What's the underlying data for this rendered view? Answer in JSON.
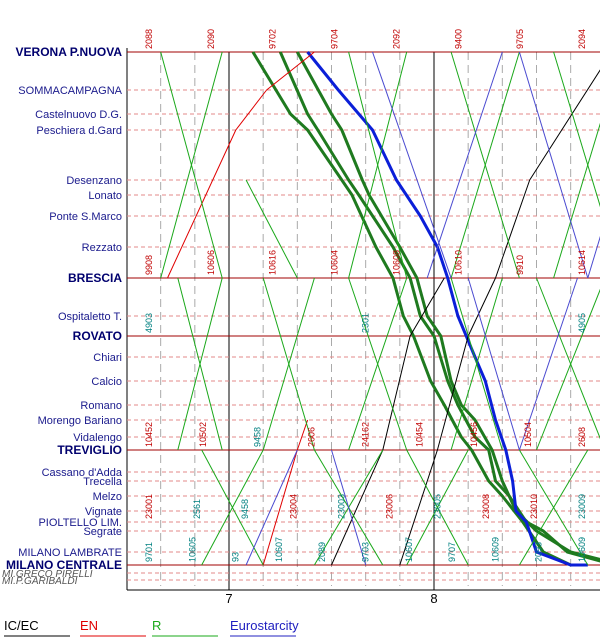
{
  "stations": [
    {
      "name": "VERONA P.NUOVA",
      "major": true
    },
    {
      "name": "SOMMACAMPAGNA",
      "major": false
    },
    {
      "name": "Castelnuovo D.G.",
      "major": false
    },
    {
      "name": "Peschiera d.Gard",
      "major": false
    },
    {
      "name": "Desenzano",
      "major": false
    },
    {
      "name": "Lonato",
      "major": false
    },
    {
      "name": "Ponte S.Marco",
      "major": false
    },
    {
      "name": "Rezzato",
      "major": false
    },
    {
      "name": "BRESCIA",
      "major": true
    },
    {
      "name": "Ospitaletto T.",
      "major": false
    },
    {
      "name": "ROVATO",
      "major": true
    },
    {
      "name": "Chiari",
      "major": false
    },
    {
      "name": "Calcio",
      "major": false
    },
    {
      "name": "Romano",
      "major": false
    },
    {
      "name": "Morengo Bariano",
      "major": false
    },
    {
      "name": "Vidalengo",
      "major": false
    },
    {
      "name": "TREVIGLIO",
      "major": true
    },
    {
      "name": "Cassano d'Adda",
      "major": false
    },
    {
      "name": "Trecella",
      "major": false
    },
    {
      "name": "Melzo",
      "major": false
    },
    {
      "name": "Vignate",
      "major": false
    },
    {
      "name": "PIOLTELLO LIM.",
      "major": false
    },
    {
      "name": "Segrate",
      "major": false
    },
    {
      "name": "MILANO LAMBRATE",
      "major": false
    },
    {
      "name": "MILANO CENTRALE",
      "major": true
    },
    {
      "name": "MI.GRECO PIRELLI",
      "major": false
    },
    {
      "name": "MI.P.GARIBALDI",
      "major": false
    }
  ],
  "hours": [
    "7",
    "8"
  ],
  "train_numbers": [
    {
      "label": "2088",
      "color": "#c00000",
      "station": "VERONA P.NUOVA"
    },
    {
      "label": "2090",
      "color": "#c00000",
      "station": "VERONA P.NUOVA"
    },
    {
      "label": "9702",
      "color": "#c00000",
      "station": "VERONA P.NUOVA"
    },
    {
      "label": "9704",
      "color": "#c00000",
      "station": "VERONA P.NUOVA"
    },
    {
      "label": "2092",
      "color": "#c00000",
      "station": "VERONA P.NUOVA"
    },
    {
      "label": "9400",
      "color": "#c00000",
      "station": "VERONA P.NUOVA"
    },
    {
      "label": "9705",
      "color": "#c00000",
      "station": "VERONA P.NUOVA"
    },
    {
      "label": "2094",
      "color": "#c00000",
      "station": "VERONA P.NUOVA"
    },
    {
      "label": "9908",
      "color": "#c00000",
      "station": "BRESCIA"
    },
    {
      "label": "10606",
      "color": "#c00000",
      "station": "BRESCIA"
    },
    {
      "label": "10616",
      "color": "#c00000",
      "station": "BRESCIA"
    },
    {
      "label": "10604",
      "color": "#c00000",
      "station": "BRESCIA"
    },
    {
      "label": "10608",
      "color": "#c00000",
      "station": "BRESCIA"
    },
    {
      "label": "10610",
      "color": "#c00000",
      "station": "BRESCIA"
    },
    {
      "label": "9910",
      "color": "#c00000",
      "station": "BRESCIA"
    },
    {
      "label": "10614",
      "color": "#c00000",
      "station": "BRESCIA"
    },
    {
      "label": "4903",
      "color": "#008080",
      "station": "ROVATO"
    },
    {
      "label": "2301",
      "color": "#008080",
      "station": "ROVATO"
    },
    {
      "label": "4905",
      "color": "#008080",
      "station": "ROVATO"
    },
    {
      "label": "10452",
      "color": "#c00000",
      "station": "TREVIGLIO"
    },
    {
      "label": "10502",
      "color": "#c00000",
      "station": "TREVIGLIO"
    },
    {
      "label": "9458",
      "color": "#008080",
      "station": "TREVIGLIO"
    },
    {
      "label": "2606",
      "color": "#c00000",
      "station": "TREVIGLIO"
    },
    {
      "label": "24162",
      "color": "#c00000",
      "station": "TREVIGLIO"
    },
    {
      "label": "10454",
      "color": "#c00000",
      "station": "TREVIGLIO"
    },
    {
      "label": "10456",
      "color": "#c00000",
      "station": "TREVIGLIO"
    },
    {
      "label": "10504",
      "color": "#c00000",
      "station": "TREVIGLIO"
    },
    {
      "label": "2608",
      "color": "#c00000",
      "station": "TREVIGLIO"
    },
    {
      "label": "23001",
      "color": "#c00000",
      "station": "PIOLTELLO LIM."
    },
    {
      "label": "2561",
      "color": "#008080",
      "station": "PIOLTELLO LIM."
    },
    {
      "label": "9458",
      "color": "#008080",
      "station": "PIOLTELLO LIM."
    },
    {
      "label": "23004",
      "color": "#c00000",
      "station": "PIOLTELLO LIM."
    },
    {
      "label": "23003",
      "color": "#008080",
      "station": "PIOLTELLO LIM."
    },
    {
      "label": "23006",
      "color": "#c00000",
      "station": "PIOLTELLO LIM."
    },
    {
      "label": "23005",
      "color": "#008080",
      "station": "PIOLTELLO LIM."
    },
    {
      "label": "23008",
      "color": "#c00000",
      "station": "PIOLTELLO LIM."
    },
    {
      "label": "23010",
      "color": "#c00000",
      "station": "PIOLTELLO LIM."
    },
    {
      "label": "23009",
      "color": "#008080",
      "station": "PIOLTELLO LIM."
    },
    {
      "label": "9701",
      "color": "#008080",
      "station": "MILANO CENTRALE"
    },
    {
      "label": "10605",
      "color": "#008080",
      "station": "MILANO CENTRALE"
    },
    {
      "label": "93",
      "color": "#008080",
      "station": "MILANO CENTRALE"
    },
    {
      "label": "10607",
      "color": "#008080",
      "station": "MILANO CENTRALE"
    },
    {
      "label": "2089",
      "color": "#008080",
      "station": "MILANO CENTRALE"
    },
    {
      "label": "9703",
      "color": "#008080",
      "station": "MILANO CENTRALE"
    },
    {
      "label": "10607",
      "color": "#008080",
      "station": "MILANO CENTRALE"
    },
    {
      "label": "9707",
      "color": "#008080",
      "station": "MILANO CENTRALE"
    },
    {
      "label": "10609",
      "color": "#008080",
      "station": "MILANO CENTRALE"
    },
    {
      "label": "2093",
      "color": "#008080",
      "station": "MILANO CENTRALE"
    },
    {
      "label": "10609",
      "color": "#008080",
      "station": "MILANO CENTRALE"
    }
  ],
  "legend": [
    {
      "label": "IC/EC",
      "color": "#000000"
    },
    {
      "label": "EN",
      "color": "#e00000"
    },
    {
      "label": "R",
      "color": "#1aa81a"
    },
    {
      "label": "Eurostarcity",
      "color": "#2020c0"
    }
  ],
  "colors": {
    "ic_ec": "#000000",
    "en": "#e00000",
    "regional": "#1aa81a",
    "regional_heavy": "#1f7a1f",
    "eurostarcity": "#0b1fd8",
    "eurostarcity_light": "#4a4ad0",
    "station_line": "#e38a8a",
    "major_line": "#a00000",
    "grid": "#aaaaaa",
    "hour_line": "#000000"
  }
}
